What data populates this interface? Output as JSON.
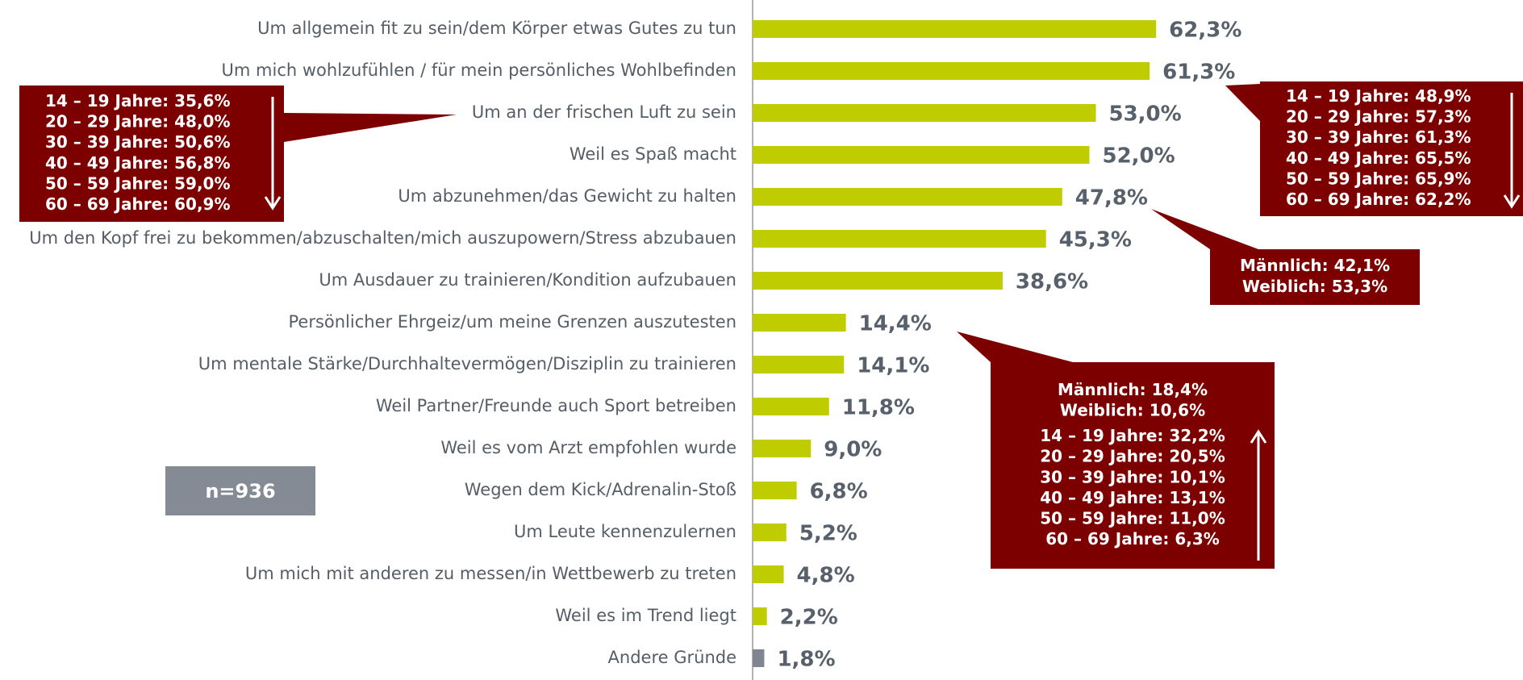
{
  "chart_data": {
    "type": "barh",
    "categories": [
      "Um allgemein fit zu sein/dem Körper etwas Gutes zu tun",
      "Um mich wohlzufühlen / für mein persönliches Wohlbefinden",
      "Um an der frischen Luft zu sein",
      "Weil es Spaß macht",
      "Um abzunehmen/das Gewicht zu halten",
      "Um den Kopf frei zu bekommen/abzuschalten/mich auszupowern/Stress abzubauen",
      "Um Ausdauer zu trainieren/Kondition aufzubauen",
      "Persönlicher Ehrgeiz/um meine Grenzen auszutesten",
      "Um mentale Stärke/Durchhaltevermögen/Disziplin zu trainieren",
      "Weil Partner/Freunde auch Sport betreiben",
      "Weil es vom Arzt empfohlen wurde",
      "Wegen dem Kick/Adrenalin-Stoß",
      "Um Leute kennenzulernen",
      "Um mich mit anderen zu messen/in Wettbewerb zu treten",
      "Weil es im Trend liegt",
      "Andere Gründe"
    ],
    "values": [
      62.3,
      61.3,
      53.0,
      52.0,
      47.8,
      45.3,
      38.6,
      14.4,
      14.1,
      11.8,
      9.0,
      6.8,
      5.2,
      4.8,
      2.2,
      1.8
    ],
    "value_labels": [
      "62,3%",
      "61,3%",
      "53,0%",
      "52,0%",
      "47,8%",
      "45,3%",
      "38,6%",
      "14,4%",
      "14,1%",
      "11,8%",
      "9,0%",
      "6,8%",
      "5,2%",
      "4,8%",
      "2,2%",
      "1,8%"
    ],
    "colors": [
      "#bfcc00",
      "#bfcc00",
      "#bfcc00",
      "#bfcc00",
      "#bfcc00",
      "#bfcc00",
      "#bfcc00",
      "#bfcc00",
      "#bfcc00",
      "#bfcc00",
      "#bfcc00",
      "#bfcc00",
      "#bfcc00",
      "#bfcc00",
      "#bfcc00",
      "#7f8690"
    ],
    "xlim": [
      0,
      70
    ],
    "annotations": [
      {
        "lines": [
          "14 – 19 Jahre: 35,6%",
          "20 – 29 Jahre: 48,0%",
          "30 – 39 Jahre: 50,6%",
          "40 – 49 Jahre: 56,8%",
          "50 – 59 Jahre: 59,0%",
          "60 – 69 Jahre: 60,9%"
        ],
        "arrow": "down"
      },
      {
        "lines": [
          "14 – 19 Jahre: 48,9%",
          "20 – 29 Jahre: 57,3%",
          "30 – 39 Jahre: 61,3%",
          "40 – 49 Jahre: 65,5%",
          "50 – 59 Jahre: 65,9%",
          "60 – 69 Jahre: 62,2%"
        ],
        "arrow": "down"
      },
      {
        "lines": [
          "Männlich: 42,1%",
          "Weiblich: 53,3%"
        ]
      },
      {
        "lines": [
          "Männlich: 18,4%",
          "Weiblich: 10,6%",
          "14 – 19 Jahre: 32,2%",
          "20 – 29 Jahre: 20,5%",
          "30 – 39 Jahre: 10,1%",
          "40 – 49 Jahre: 13,1%",
          "50 – 59 Jahre: 11,0%",
          "60 – 69 Jahre: 6,3%"
        ],
        "arrow": "up"
      }
    ],
    "sample_size": "n=936"
  }
}
